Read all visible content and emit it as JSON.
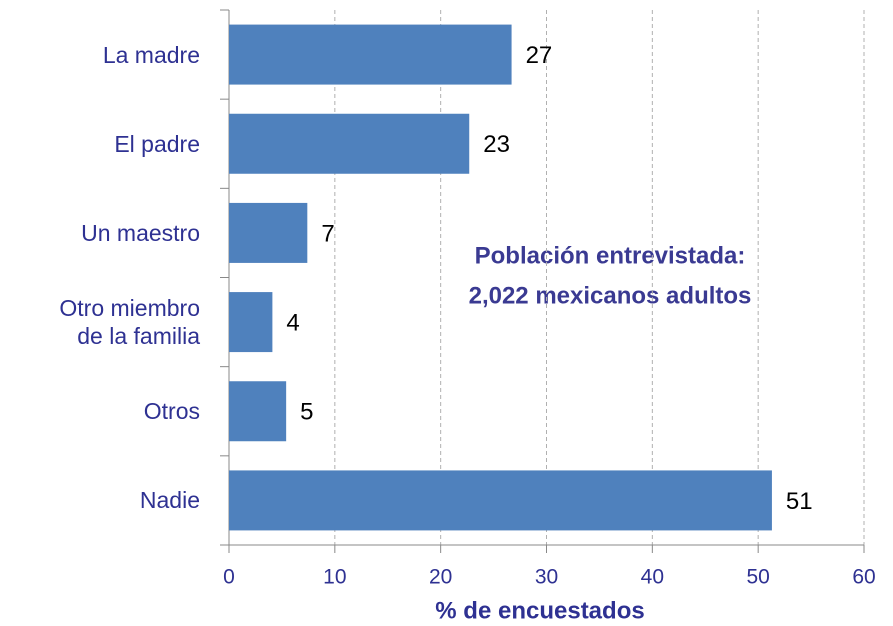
{
  "chart_data": {
    "type": "bar",
    "orientation": "horizontal",
    "categories": [
      "La madre",
      "El padre",
      "Un maestro",
      "Otro miembro\nde la familia",
      "Otros",
      "Nadie"
    ],
    "values": [
      26.7,
      22.7,
      7.4,
      4.1,
      5.4,
      51.3
    ],
    "value_labels": [
      "27",
      "23",
      "7",
      "4",
      "5",
      "51"
    ],
    "color": "#4f81bd",
    "xlim": [
      0,
      60
    ],
    "xticks": [
      0,
      10,
      20,
      30,
      40,
      50,
      60
    ],
    "grid": true,
    "xlabel": "% de encuestados",
    "annotation": [
      "Población entrevistada:",
      "2,022 mexicanos adultos"
    ]
  }
}
